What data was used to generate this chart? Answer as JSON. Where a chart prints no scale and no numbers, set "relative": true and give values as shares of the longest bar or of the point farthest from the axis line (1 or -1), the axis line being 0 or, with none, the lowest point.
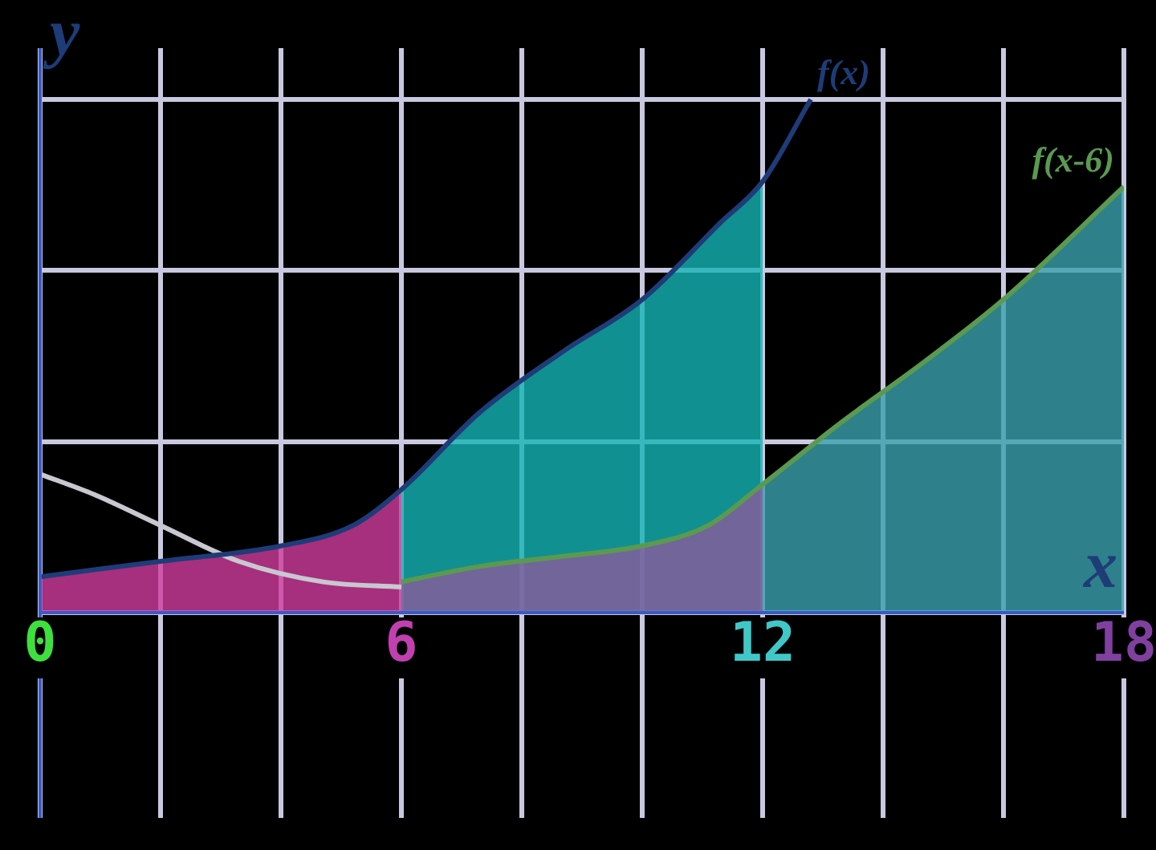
{
  "chart_data": {
    "type": "line",
    "relative": true,
    "xlabel": "x",
    "ylabel": "y",
    "xlim": [
      0,
      18
    ],
    "xticks": [
      0,
      {
        "value": 2,
        "label": null
      },
      {
        "value": 4,
        "label": null
      },
      6,
      {
        "value": 8,
        "label": null
      },
      {
        "value": 10,
        "label": null
      },
      12,
      {
        "value": 14,
        "label": null
      },
      {
        "value": 16,
        "label": null
      },
      18
    ],
    "grid": true,
    "legend": false,
    "marker": "none",
    "series": [
      {
        "type": "area",
        "color": "#d03c9c",
        "x": [
          0,
          2,
          4,
          5.2,
          6
        ],
        "values": [
          0.07,
          0.1,
          0.13,
          0.17,
          0.24
        ]
      },
      {
        "type": "area",
        "color": "#14b4b4",
        "x": [
          6,
          7.3,
          8.7,
          10,
          11.3,
          12
        ],
        "values": [
          0.24,
          0.39,
          0.51,
          0.61,
          0.76,
          0.84
        ]
      },
      {
        "type": "area",
        "color": "#8a5a9c",
        "x": [
          6,
          7.3,
          8.7,
          10,
          11.1,
          12
        ],
        "values": [
          0.06,
          0.09,
          0.11,
          0.13,
          0.17,
          0.25
        ]
      },
      {
        "type": "area",
        "color": "#3aa0ac",
        "x": [
          12,
          13.3,
          14.7,
          16,
          18
        ],
        "values": [
          0.25,
          0.37,
          0.49,
          0.61,
          0.83
        ]
      },
      {
        "type": "line",
        "color": "#c8c8d0",
        "x": [
          0,
          0.9,
          2,
          3.3,
          4.7,
          6
        ],
        "values": [
          0.27,
          0.23,
          0.17,
          0.1,
          0.06,
          0.05
        ]
      },
      {
        "type": "line",
        "name": "f(x)",
        "color": "#1e3c78",
        "x": [
          0,
          2,
          4,
          5.2,
          6,
          7.3,
          8.7,
          10,
          11.3,
          12,
          12.8
        ],
        "values": [
          0.07,
          0.1,
          0.13,
          0.17,
          0.24,
          0.39,
          0.51,
          0.61,
          0.76,
          0.84,
          1
        ]
      },
      {
        "type": "line",
        "name": "f(x-6)",
        "color": "#5a9a50",
        "x": [
          6,
          7.3,
          8.7,
          10,
          11.1,
          12,
          13.3,
          14.7,
          16,
          18
        ],
        "values": [
          0.06,
          0.09,
          0.11,
          0.13,
          0.17,
          0.25,
          0.37,
          0.49,
          0.61,
          0.83
        ]
      }
    ]
  }
}
